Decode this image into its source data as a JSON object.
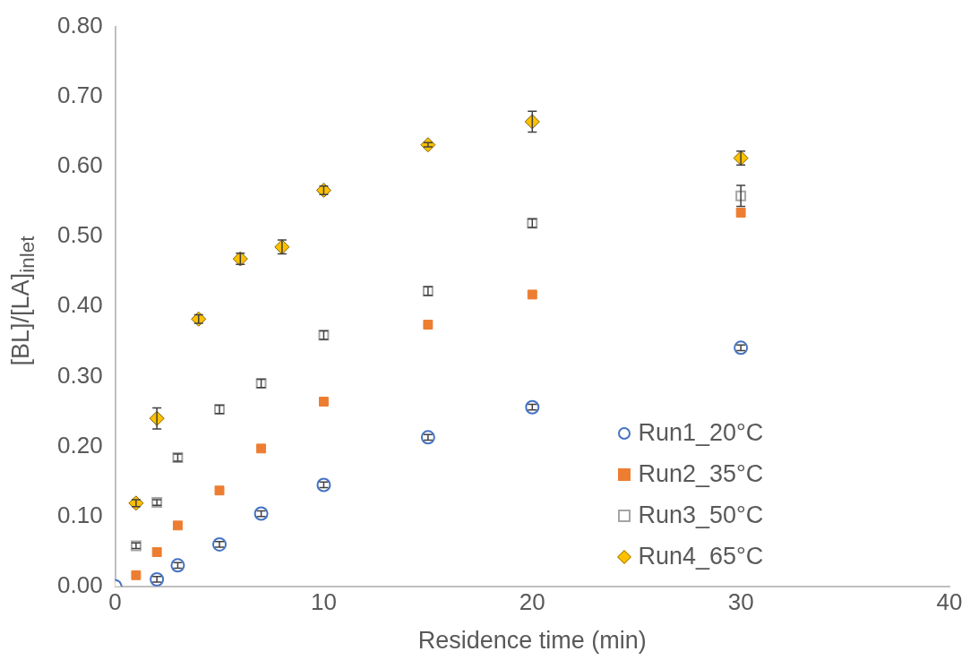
{
  "chart_data": {
    "type": "scatter",
    "xlabel": "Residence time (min)",
    "ylabel": "[BL]/[LA]$_{inlet}$",
    "xlim": [
      0,
      40
    ],
    "xticks": [
      0,
      10,
      20,
      30,
      40
    ],
    "ylim": [
      0,
      0.8
    ],
    "yticks": [
      {
        "value": 0,
        "label": "0.00"
      },
      {
        "value": 0.1,
        "label": "0.10"
      },
      {
        "value": 0.2,
        "label": "0.20"
      },
      {
        "value": 0.3,
        "label": "0.30"
      },
      {
        "value": 0.4,
        "label": "0.40"
      },
      {
        "value": 0.5,
        "label": "0.50"
      },
      {
        "value": 0.6,
        "label": "0.60"
      },
      {
        "value": 0.7,
        "label": "0.70"
      },
      {
        "value": 0.8,
        "label": "0.80"
      }
    ],
    "grid": false,
    "legend": "bottom right",
    "series": [
      {
        "name": "Run1_20°C",
        "color": "#4472c4",
        "marker": "circle",
        "x": [
          0,
          2,
          3,
          5,
          7,
          10,
          15,
          20,
          30
        ],
        "values": [
          0,
          0.01,
          0.03,
          0.06,
          0.104,
          0.145,
          0.213,
          0.256,
          0.341
        ],
        "errors": [
          null,
          0.004,
          0.004,
          0.004,
          0.004,
          0.004,
          0.004,
          0.004,
          0.004
        ]
      },
      {
        "name": "Run2_35°C",
        "color": "#ed7d31",
        "marker": "square",
        "x": [
          0,
          1,
          2,
          3,
          5,
          7,
          10,
          15,
          20,
          30
        ],
        "values": [
          0,
          0.016,
          0.049,
          0.087,
          0.137,
          0.197,
          0.264,
          0.374,
          0.417,
          0.534
        ]
      },
      {
        "name": "Run3_50°C",
        "color": "#a5a5a5",
        "marker": "square",
        "x": [
          0,
          1,
          2,
          3,
          5,
          7,
          10,
          15,
          20,
          30
        ],
        "values": [
          0,
          0.058,
          0.12,
          0.184,
          0.253,
          0.29,
          0.359,
          0.422,
          0.519,
          0.558
        ],
        "errors": [
          null,
          0.004,
          0.004,
          0.005,
          0.006,
          0.006,
          0.006,
          0.006,
          0.006,
          0.015
        ]
      },
      {
        "name": "Run4_65°C",
        "color": "#ffc000",
        "marker": "diamond",
        "x": [
          0,
          1,
          2,
          4,
          6,
          8,
          10,
          15,
          20,
          30
        ],
        "values": [
          0,
          0.119,
          0.24,
          0.382,
          0.468,
          0.485,
          0.566,
          0.631,
          0.664,
          0.612
        ],
        "errors": [
          null,
          0.005,
          0.015,
          0.006,
          0.008,
          0.01,
          0.006,
          0.003,
          0.015,
          0.01
        ]
      }
    ]
  }
}
